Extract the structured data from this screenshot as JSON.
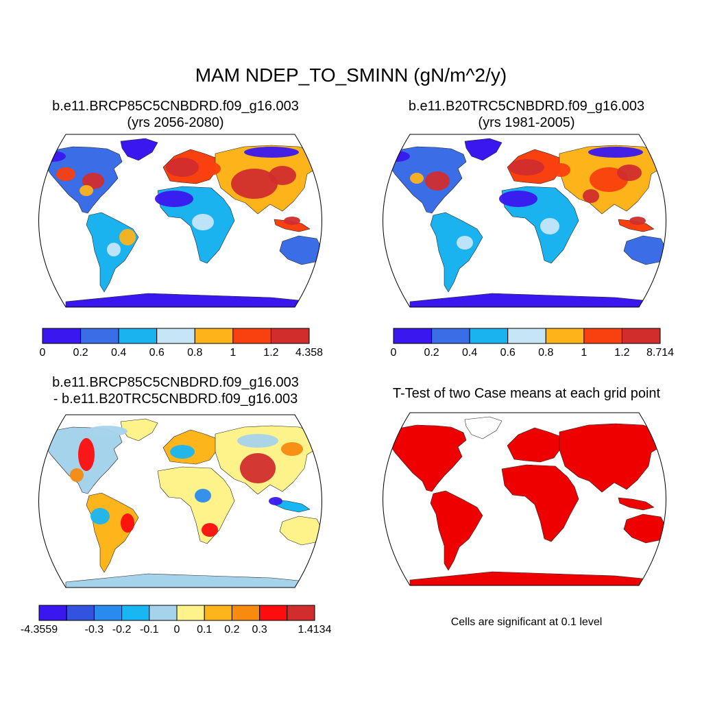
{
  "title": "MAM NDEP_TO_SMINN (gN/m^2/y)",
  "panels": [
    {
      "id": "case",
      "title_line1": "b.e11.BRCP85C5CNBDRD.f09_g16.003",
      "title_line2": "(yrs 2056-2080)",
      "colorbar": {
        "colors": [
          "#3a17ef",
          "#3a6de6",
          "#1ab3f0",
          "#c6e6f8",
          "#fdb31a",
          "#f9400f",
          "#d12d2d"
        ],
        "labels": [
          "0",
          "0.2",
          "0.4",
          "0.6",
          "0.8",
          "1",
          "1.2",
          "4.358"
        ]
      }
    },
    {
      "id": "control",
      "title_line1": "b.e11.B20TRC5CNBDRD.f09_g16.003",
      "title_line2": "(yrs 1981-2005)",
      "colorbar": {
        "colors": [
          "#3a17ef",
          "#3a6de6",
          "#1ab3f0",
          "#c6e6f8",
          "#fdb31a",
          "#f9400f",
          "#d12d2d"
        ],
        "labels": [
          "0",
          "0.2",
          "0.4",
          "0.6",
          "0.8",
          "1",
          "1.2",
          "8.714"
        ]
      }
    },
    {
      "id": "difference",
      "title_line1": "b.e11.BRCP85C5CNBDRD.f09_g16.003",
      "title_line2": "- b.e11.B20TRC5CNBDRD.f09_g16.003",
      "colorbar": {
        "colors": [
          "#3a17ef",
          "#3253e0",
          "#2a8bef",
          "#18b6f3",
          "#a6d3ec",
          "#fdf38a",
          "#fdb51b",
          "#f88a10",
          "#fd0d0d",
          "#d12d2d"
        ],
        "labels": [
          "-4.3559",
          "",
          "-0.3",
          "-0.2",
          "-0.1",
          "0",
          "0.1",
          "0.2",
          "0.3",
          "",
          "1.4134"
        ]
      }
    },
    {
      "id": "ttest",
      "title_line1": "T-Test of two Case means at each grid point",
      "note": "Cells are significant at 0.1 level",
      "significant_color": "#ee0000"
    }
  ]
}
